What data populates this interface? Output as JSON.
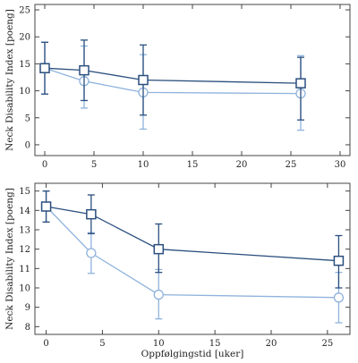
{
  "figure": {
    "panels": [
      {
        "ylabel": "Neck Disability Index [poeng]",
        "xlabel": "",
        "x_ticks": [
          "0",
          "5",
          "10",
          "15",
          "20",
          "25",
          "30"
        ],
        "y_ticks": [
          "0",
          "5",
          "10",
          "15",
          "20",
          "25"
        ]
      },
      {
        "ylabel": "Neck Disability Index [poeng]",
        "xlabel": "Oppfølgingstid [uker]",
        "x_ticks": [
          "0",
          "5",
          "10",
          "15",
          "20",
          "25"
        ],
        "y_ticks": [
          "8",
          "9",
          "10",
          "11",
          "12",
          "13",
          "14",
          "15"
        ]
      }
    ]
  },
  "colors": {
    "dark_series": "#2b4f7e",
    "light_series": "#8fb3dd",
    "frame": "#444444"
  },
  "chart_data": [
    {
      "type": "line",
      "title": "",
      "xlabel": "",
      "ylabel": "Neck Disability Index [poeng]",
      "xlim": [
        -1,
        31
      ],
      "ylim": [
        -2,
        26
      ],
      "x_ticks": [
        0,
        5,
        10,
        15,
        20,
        25,
        30
      ],
      "y_ticks": [
        0,
        5,
        10,
        15,
        20,
        25
      ],
      "grid": false,
      "legend": "none",
      "series": [
        {
          "marker": "square",
          "color": "#2b4f7e",
          "x": [
            0,
            4,
            10,
            26
          ],
          "y": [
            14.2,
            13.8,
            12.0,
            11.4
          ],
          "err_low": [
            4.8,
            5.6,
            6.5,
            6.8
          ],
          "err_high": [
            4.8,
            5.6,
            6.5,
            4.8
          ]
        },
        {
          "marker": "circle",
          "color": "#8fb3dd",
          "x": [
            0,
            4,
            10,
            26
          ],
          "y": [
            14.2,
            11.8,
            9.7,
            9.5
          ],
          "err_low": [
            4.8,
            5.0,
            6.8,
            6.8
          ],
          "err_high": [
            4.8,
            6.5,
            7.0,
            7.0
          ]
        }
      ]
    },
    {
      "type": "line",
      "title": "",
      "xlabel": "Oppfølgingstid [uker]",
      "ylabel": "Neck Disability Index [poeng]",
      "xlim": [
        -1,
        27
      ],
      "ylim": [
        7.6,
        15.4
      ],
      "x_ticks": [
        0,
        5,
        10,
        15,
        20,
        25
      ],
      "y_ticks": [
        8,
        9,
        10,
        11,
        12,
        13,
        14,
        15
      ],
      "grid": false,
      "legend": "none",
      "series": [
        {
          "marker": "square",
          "color": "#2b4f7e",
          "x": [
            0,
            4,
            10,
            26
          ],
          "y": [
            14.2,
            13.8,
            12.0,
            11.4
          ],
          "err_low": [
            0.8,
            1.0,
            1.2,
            1.4
          ],
          "err_high": [
            0.8,
            1.0,
            1.3,
            1.3
          ]
        },
        {
          "marker": "circle",
          "color": "#8fb3dd",
          "x": [
            0,
            4,
            10,
            26
          ],
          "y": [
            14.2,
            11.8,
            9.65,
            9.5
          ],
          "err_low": [
            0.8,
            1.05,
            1.25,
            1.3
          ],
          "err_high": [
            0.8,
            1.05,
            1.3,
            1.3
          ]
        }
      ]
    }
  ]
}
